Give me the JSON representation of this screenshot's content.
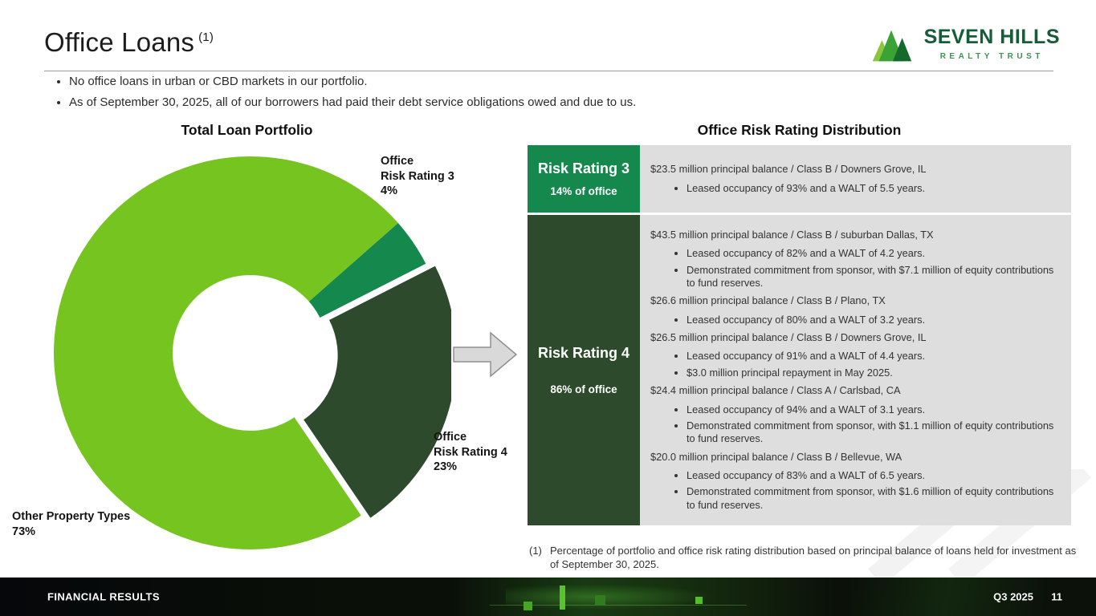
{
  "header": {
    "title": "Office Loans",
    "superscript": "(1)"
  },
  "logo": {
    "name": "SEVEN HILLS",
    "subtitle": "REALTY TRUST"
  },
  "intro": {
    "bullets": [
      "No office loans in urban or CBD markets in our portfolio.",
      "As of September 30, 2025, all of our borrowers had paid their debt service obligations owed and due to us."
    ]
  },
  "chart_data": {
    "type": "pie",
    "donut": true,
    "title": "Total Loan Portfolio",
    "start_angle_deg": 48.6,
    "slices": [
      {
        "label": "Office Risk Rating 3",
        "value": 4,
        "color": "#15894d",
        "exploded": false,
        "callout_lines": [
          "Office",
          "Risk Rating 3",
          "4%"
        ]
      },
      {
        "label": "Office Risk Rating 4",
        "value": 23,
        "color": "#2d4a2c",
        "exploded": true,
        "callout_lines": [
          "Office",
          "Risk Rating 4",
          "23%"
        ]
      },
      {
        "label": "Other Property Types",
        "value": 73,
        "color": "#76c41f",
        "exploded": false,
        "callout_lines": [
          "Other Property Types",
          "73%"
        ]
      }
    ]
  },
  "table": {
    "title": "Office Risk Rating Distribution",
    "rows": [
      {
        "rating_label": "Risk Rating 3",
        "pct_label": "14% of office",
        "header_color": "#15894d",
        "items": [
          {
            "heading": "$23.5 million principal balance / Class B / Downers Grove, IL",
            "bullets": [
              "Leased occupancy of 93% and a WALT of 5.5 years."
            ]
          }
        ]
      },
      {
        "rating_label": "Risk Rating 4",
        "pct_label": "86% of office",
        "header_color": "#2d4a2c",
        "items": [
          {
            "heading": "$43.5 million principal balance / Class B / suburban Dallas, TX",
            "bullets": [
              "Leased occupancy of 82% and a WALT of 4.2 years.",
              "Demonstrated commitment from sponsor, with $7.1 million of equity contributions to fund reserves."
            ]
          },
          {
            "heading": "$26.6 million principal balance / Class B / Plano, TX",
            "bullets": [
              "Leased occupancy of 80% and a WALT of 3.2 years."
            ]
          },
          {
            "heading": "$26.5 million principal balance / Class B / Downers Grove, IL",
            "bullets": [
              "Leased occupancy of 91% and a WALT of 4.4 years.",
              "$3.0 million principal repayment in May 2025."
            ]
          },
          {
            "heading": "$24.4 million principal balance / Class A / Carlsbad, CA",
            "bullets": [
              "Leased occupancy of 94% and a WALT of 3.1 years.",
              "Demonstrated commitment from sponsor, with $1.1 million of equity contributions to fund reserves."
            ]
          },
          {
            "heading": "$20.0 million principal balance / Class B / Bellevue, WA",
            "bullets": [
              "Leased occupancy of 83% and a WALT of 6.5 years.",
              "Demonstrated commitment from sponsor, with $1.6 million of equity contributions to fund reserves."
            ]
          }
        ]
      }
    ]
  },
  "footnote": {
    "marker": "(1)",
    "text": "Percentage of portfolio and office risk rating distribution based on principal balance of loans held for investment as of September 30, 2025."
  },
  "footer": {
    "left": "FINANCIAL RESULTS",
    "quarter": "Q3 2025",
    "page": "11"
  }
}
